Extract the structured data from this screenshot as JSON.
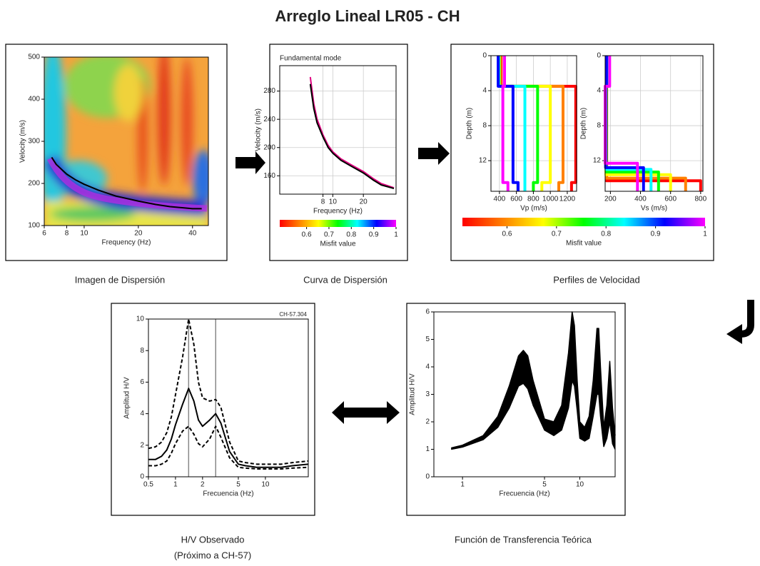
{
  "title": "Arreglo Lineal LR05 - CH",
  "captions": [
    "Imagen de Dispersión",
    "Curva de Dispersión",
    "Perfiles de Velocidad",
    "H/V Observado",
    "(Próximo a CH-57)",
    "Función de Transferencia Teórica"
  ],
  "chart_data": [
    {
      "type": "line",
      "xlabel": "Frequency (Hz)",
      "ylabel": "Velocity (m/s)",
      "xscale": "log",
      "x": [
        6.6,
        7,
        8,
        9,
        10,
        12,
        15,
        20,
        25,
        30,
        40,
        45
      ],
      "series": [
        {
          "color": "#000000",
          "values": [
            262,
            245,
            222,
            208,
            198,
            184,
            170,
            158,
            150,
            145,
            140,
            140
          ]
        }
      ],
      "xlim": [
        6,
        49
      ],
      "ylim": [
        100,
        500
      ],
      "xticks": [
        6,
        8,
        10,
        20,
        40
      ],
      "yticks": [
        100,
        200,
        300,
        400,
        500
      ]
    },
    {
      "type": "line",
      "title": "Fundamental mode",
      "xlabel": "Frequency (Hz)",
      "ylabel": "Velocity (m/s)",
      "xscale": "log",
      "grid": true,
      "x": [
        6,
        6.5,
        7,
        8,
        9,
        10,
        12,
        15,
        20,
        25,
        30,
        40
      ],
      "series": [
        {
          "color": "#e0007f",
          "values": [
            300,
            262,
            240,
            218,
            203,
            194,
            184,
            176,
            166,
            156,
            149,
            143
          ]
        },
        {
          "color": "#000000",
          "values": [
            290,
            255,
            235,
            215,
            200,
            192,
            182,
            174,
            164,
            154,
            147,
            142
          ]
        }
      ],
      "xlim": [
        3,
        42
      ],
      "ylim": [
        134,
        316
      ],
      "xticks": [
        8,
        10,
        20
      ],
      "yticks": [
        160,
        200,
        240,
        280
      ],
      "colorbar": {
        "label": "Misfit value",
        "lim": [
          0.48,
          1
        ],
        "ticks": [
          0.6,
          0.7,
          0.8,
          0.9,
          1
        ],
        "colors": [
          "#ff0000",
          "#ff8000",
          "#ffff00",
          "#00ff00",
          "#00ffff",
          "#0000ff",
          "#ff00ff"
        ]
      }
    },
    {
      "type": "profile",
      "xlabel": "Vp (m/s)",
      "ylabel": "Depth (m)",
      "invert_y": true,
      "grid": true,
      "series": [
        {
          "color": "#ff0000",
          "depths": [
            0,
            3.5,
            3.5,
            14.5,
            14.5,
            15.5
          ],
          "values": [
            420,
            420,
            1300,
            1300,
            1250,
            1250
          ]
        },
        {
          "color": "#ff8000",
          "depths": [
            0,
            3.5,
            3.5,
            14.5,
            14.5,
            15.5
          ],
          "values": [
            410,
            410,
            1150,
            1150,
            1100,
            1100
          ]
        },
        {
          "color": "#ffff00",
          "depths": [
            0,
            3.5,
            3.5,
            14.5,
            14.5,
            15.5
          ],
          "values": [
            400,
            400,
            1000,
            1000,
            900,
            900
          ]
        },
        {
          "color": "#00ff00",
          "depths": [
            0,
            3.5,
            3.5,
            14.5,
            14.5,
            15.5
          ],
          "values": [
            395,
            395,
            850,
            850,
            800,
            800
          ]
        },
        {
          "color": "#00ffff",
          "depths": [
            0,
            3.5,
            3.5,
            14.5,
            14.5,
            15.5
          ],
          "values": [
            390,
            390,
            700,
            700,
            700,
            700
          ]
        },
        {
          "color": "#0000ff",
          "depths": [
            0,
            3.5,
            3.5,
            14.5,
            14.5,
            15.5
          ],
          "values": [
            385,
            385,
            560,
            560,
            620,
            620
          ]
        },
        {
          "color": "#ff00ff",
          "depths": [
            0,
            3.5,
            3.5,
            14.5,
            14.5,
            15.5
          ],
          "values": [
            460,
            460,
            440,
            440,
            500,
            500
          ]
        }
      ],
      "xlim": [
        300,
        1310
      ],
      "ylim": [
        0,
        15.5
      ],
      "xticks": [
        400,
        600,
        800,
        1000,
        1200
      ],
      "yticks": [
        0,
        4,
        8,
        12
      ],
      "colorbar": {
        "label": "Misfit value",
        "lim": [
          0.51,
          1
        ],
        "ticks": [
          0.6,
          0.7,
          0.8,
          0.9,
          1
        ],
        "colors": [
          "#ff0000",
          "#ff8000",
          "#ffff00",
          "#00ff00",
          "#00ffff",
          "#0000ff",
          "#ff00ff"
        ]
      }
    },
    {
      "type": "profile",
      "xlabel": "Vs (m/s)",
      "ylabel": "Depth (m)",
      "invert_y": true,
      "grid": true,
      "series": [
        {
          "color": "#ff0000",
          "depths": [
            0,
            3.5,
            3.5,
            14.3,
            14.3,
            15.5
          ],
          "values": [
            185,
            185,
            175,
            175,
            800,
            800
          ]
        },
        {
          "color": "#ff8000",
          "depths": [
            0,
            3.5,
            3.5,
            14,
            14,
            15.5
          ],
          "values": [
            183,
            183,
            172,
            172,
            700,
            700
          ]
        },
        {
          "color": "#ffff00",
          "depths": [
            0,
            3.5,
            3.5,
            13.6,
            13.6,
            15.5
          ],
          "values": [
            180,
            180,
            170,
            170,
            600,
            600
          ]
        },
        {
          "color": "#00ff00",
          "depths": [
            0,
            3.5,
            3.5,
            13.3,
            13.3,
            15.5
          ],
          "values": [
            178,
            178,
            172,
            172,
            520,
            520
          ]
        },
        {
          "color": "#00ffff",
          "depths": [
            0,
            3.5,
            3.5,
            13,
            13,
            15.5
          ],
          "values": [
            176,
            176,
            170,
            170,
            470,
            470
          ]
        },
        {
          "color": "#0000ff",
          "depths": [
            0,
            3.5,
            3.5,
            12.8,
            12.8,
            15.5
          ],
          "values": [
            174,
            174,
            168,
            168,
            420,
            420
          ]
        },
        {
          "color": "#ff00ff",
          "depths": [
            0,
            3.5,
            3.5,
            12.3,
            12.3,
            15.5
          ],
          "values": [
            195,
            195,
            165,
            165,
            380,
            380
          ]
        }
      ],
      "xlim": [
        165,
        815
      ],
      "ylim": [
        0,
        15.5
      ],
      "xticks": [
        200,
        400,
        600,
        800
      ],
      "yticks": [
        0,
        4,
        8,
        12
      ]
    },
    {
      "type": "line",
      "annotation": "CH-57.304",
      "xlabel": "Frecuencia (Hz)",
      "ylabel": "Amplitud H/V",
      "xscale": "log",
      "x": [
        0.5,
        0.6,
        0.7,
        0.8,
        0.9,
        1,
        1.2,
        1.4,
        1.6,
        1.8,
        2,
        2.4,
        2.8,
        3.2,
        4,
        5,
        6,
        8,
        10,
        15,
        20,
        30
      ],
      "series": [
        {
          "color": "#000000",
          "dash": true,
          "values": [
            1.8,
            1.9,
            2.2,
            2.8,
            3.8,
            5.2,
            7.6,
            10,
            8.4,
            6.0,
            5.0,
            4.8,
            4.9,
            4.4,
            2.2,
            1.0,
            0.9,
            0.8,
            0.8,
            0.8,
            0.9,
            1.0
          ]
        },
        {
          "color": "#000000",
          "values": [
            1.1,
            1.1,
            1.3,
            1.7,
            2.4,
            3.3,
            4.6,
            5.6,
            4.8,
            3.6,
            3.2,
            3.6,
            4.0,
            3.4,
            1.6,
            0.8,
            0.7,
            0.6,
            0.6,
            0.6,
            0.7,
            0.8
          ]
        },
        {
          "color": "#000000",
          "dash": true,
          "values": [
            0.7,
            0.7,
            0.8,
            1.0,
            1.5,
            2.1,
            2.9,
            3.2,
            2.7,
            2.1,
            1.9,
            2.4,
            3.2,
            2.5,
            1.2,
            0.6,
            0.55,
            0.5,
            0.5,
            0.5,
            0.55,
            0.6
          ]
        }
      ],
      "vlines": [
        1.4,
        2.8
      ],
      "xlim": [
        0.5,
        30
      ],
      "ylim": [
        0,
        10
      ],
      "xticks": [
        0.5,
        1,
        2,
        5,
        10
      ],
      "yticks": [
        0,
        2,
        4,
        6,
        8,
        10
      ]
    },
    {
      "type": "band",
      "xlabel": "Frecuencia (Hz)",
      "ylabel": "Amplitud H/V",
      "xscale": "log",
      "x": [
        0.8,
        1,
        1.5,
        2,
        2.5,
        3,
        3.3,
        3.6,
        4,
        5,
        6,
        7,
        8,
        8.6,
        9,
        9.5,
        10,
        11,
        12,
        13,
        14,
        14.5,
        15,
        16,
        17,
        18,
        19,
        20
      ],
      "series": [
        {
          "color": "#000000",
          "values": [
            1.05,
            1.15,
            1.5,
            2.2,
            3.3,
            4.4,
            4.6,
            4.4,
            3.5,
            2.1,
            2.0,
            2.6,
            4.5,
            6.0,
            5.5,
            3.5,
            2.0,
            1.8,
            2.2,
            3.5,
            5.4,
            5.4,
            4.0,
            1.8,
            2.6,
            4.2,
            2.5,
            1.5
          ]
        },
        {
          "color": "#000000",
          "values": [
            1.0,
            1.08,
            1.35,
            1.8,
            2.5,
            3.3,
            3.4,
            3.2,
            2.6,
            1.7,
            1.5,
            1.7,
            2.5,
            3.5,
            3.3,
            2.4,
            1.4,
            1.3,
            1.4,
            2.2,
            3.0,
            3.0,
            2.2,
            1.1,
            1.4,
            2.0,
            1.2,
            1.0
          ]
        }
      ],
      "xlim": [
        0.57,
        20
      ],
      "ylim": [
        0,
        6
      ],
      "xticks": [
        1,
        5,
        10
      ],
      "yticks": [
        0,
        1,
        2,
        3,
        4,
        5,
        6
      ]
    }
  ]
}
